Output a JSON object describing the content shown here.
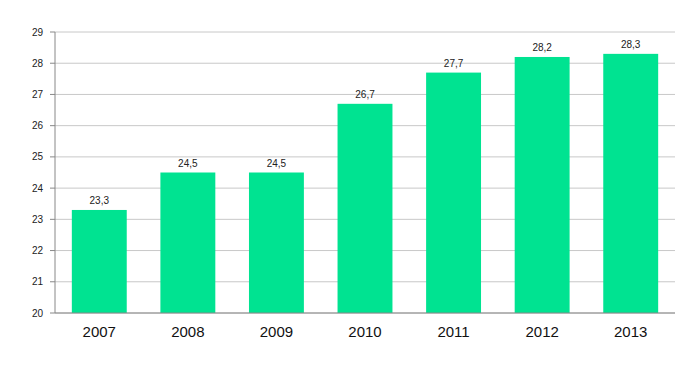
{
  "chart_data": {
    "type": "bar",
    "categories": [
      "2007",
      "2008",
      "2009",
      "2010",
      "2011",
      "2012",
      "2013"
    ],
    "values": [
      23.3,
      24.5,
      24.5,
      26.7,
      27.7,
      28.2,
      28.3
    ],
    "value_labels": [
      "23,3",
      "24,5",
      "24,5",
      "26,7",
      "27,7",
      "28,2",
      "28,3"
    ],
    "color": "#00e391",
    "ylim": [
      20,
      29
    ],
    "yticks": [
      20,
      21,
      22,
      23,
      24,
      25,
      26,
      27,
      28,
      29
    ],
    "grid": true,
    "data_labels": true
  }
}
